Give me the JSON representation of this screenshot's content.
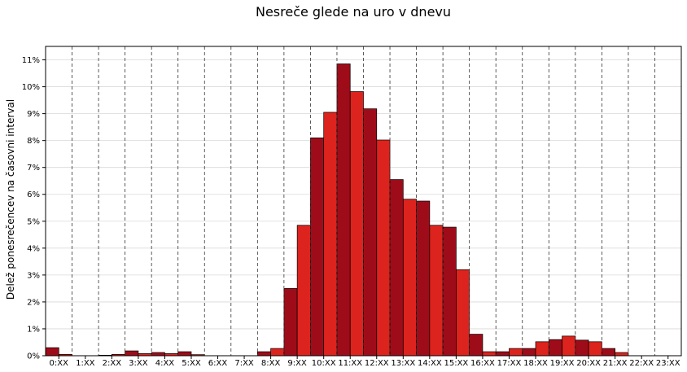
{
  "chart_data": {
    "type": "bar",
    "title": "Nesreče glede na uro v dnevu",
    "xlabel": "",
    "ylabel": "Delež ponesrečencev na časovni interval",
    "ylim": [
      0,
      11.5
    ],
    "yticks": [
      "0%",
      "1%",
      "2%",
      "3%",
      "4%",
      "5%",
      "6%",
      "7%",
      "8%",
      "9%",
      "10%",
      "11%"
    ],
    "hour_labels": [
      "0:XX",
      "1:XX",
      "2:XX",
      "3:XX",
      "4:XX",
      "5:XX",
      "6:XX",
      "7:XX",
      "8:XX",
      "9:XX",
      "10:XX",
      "11:XX",
      "12:XX",
      "13:XX",
      "14:XX",
      "15:XX",
      "16:XX",
      "17:XX",
      "18:XX",
      "19:XX",
      "20:XX",
      "21:XX",
      "22:XX",
      "23:XX"
    ],
    "bin_width_hours": 0.5,
    "values": [
      0.3,
      0.05,
      0,
      0,
      0.02,
      0.05,
      0.18,
      0.08,
      0.12,
      0.08,
      0.15,
      0.04,
      0,
      0,
      0,
      0,
      0.15,
      0.27,
      2.5,
      4.85,
      8.1,
      9.05,
      10.85,
      9.82,
      9.18,
      8.02,
      6.55,
      5.82,
      5.75,
      4.85,
      4.78,
      3.2,
      0.8,
      0.15,
      0.15,
      0.27,
      0.27,
      0.52,
      0.6,
      0.73,
      0.58,
      0.52,
      0.27,
      0.12,
      0,
      0,
      0,
      0
    ],
    "colors": {
      "bar_even": "#9e0c19",
      "bar_odd": "#dc231d",
      "bar_edge": "#000000",
      "hour_separator": "#333333",
      "grid": "#d9d9d9"
    },
    "grid": true,
    "hour_separators": "dashed"
  }
}
